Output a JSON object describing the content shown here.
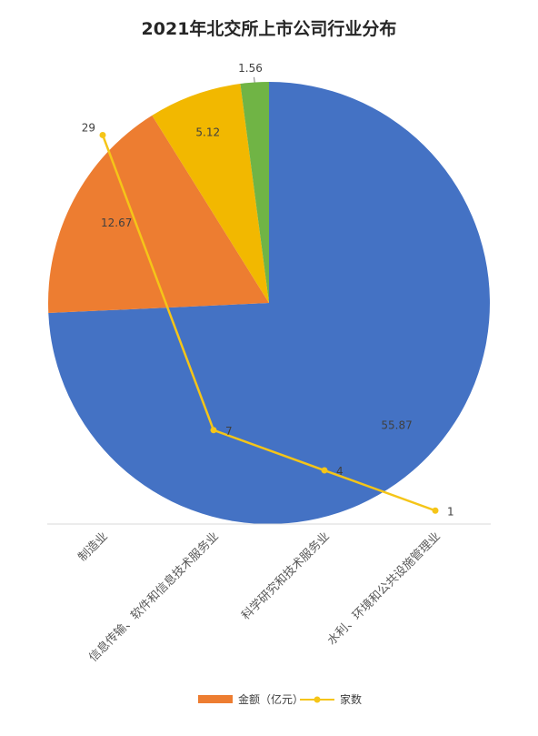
{
  "chart_data": {
    "type": "pie",
    "title": "2021年北交所上市公司行业分布",
    "categories": [
      "制造业",
      "信息传输、软件和信息技术服务业",
      "科学研究和技术服务业",
      "水利、环境和公共设施管理业"
    ],
    "series": [
      {
        "name": "金额（亿元）",
        "type": "pie",
        "values": [
          55.87,
          12.67,
          5.12,
          1.56
        ],
        "colors": [
          "#4472C4",
          "#ED7D31",
          "#F2B800",
          "#70B445"
        ]
      },
      {
        "name": "家数",
        "type": "line",
        "values": [
          29,
          7,
          4,
          1
        ],
        "color": "#F5C518"
      }
    ],
    "legend_position": "bottom"
  }
}
